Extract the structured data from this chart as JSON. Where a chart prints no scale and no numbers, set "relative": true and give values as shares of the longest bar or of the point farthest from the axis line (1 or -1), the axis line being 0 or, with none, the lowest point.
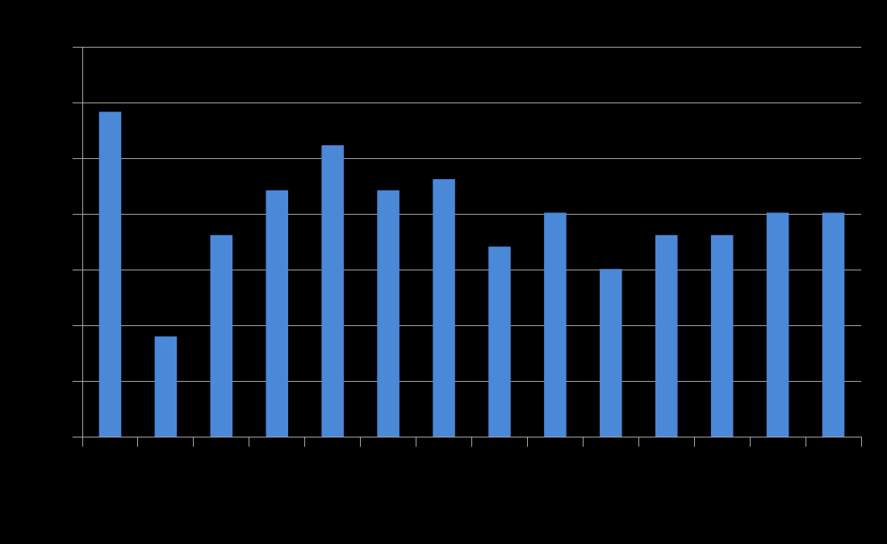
{
  "chart_data": {
    "type": "bar",
    "relative": true,
    "categories": [
      null,
      null,
      null,
      null,
      null,
      null,
      null,
      null,
      null,
      null,
      null,
      null,
      null,
      null
    ],
    "values": [
      1,
      0.31,
      0.621,
      0.759,
      0.897,
      0.759,
      0.793,
      0.586,
      0.69,
      0.517,
      0.621,
      0.621,
      0.69,
      0.69
    ],
    "color": "#4a88d8",
    "grid": "y",
    "legend": false
  }
}
